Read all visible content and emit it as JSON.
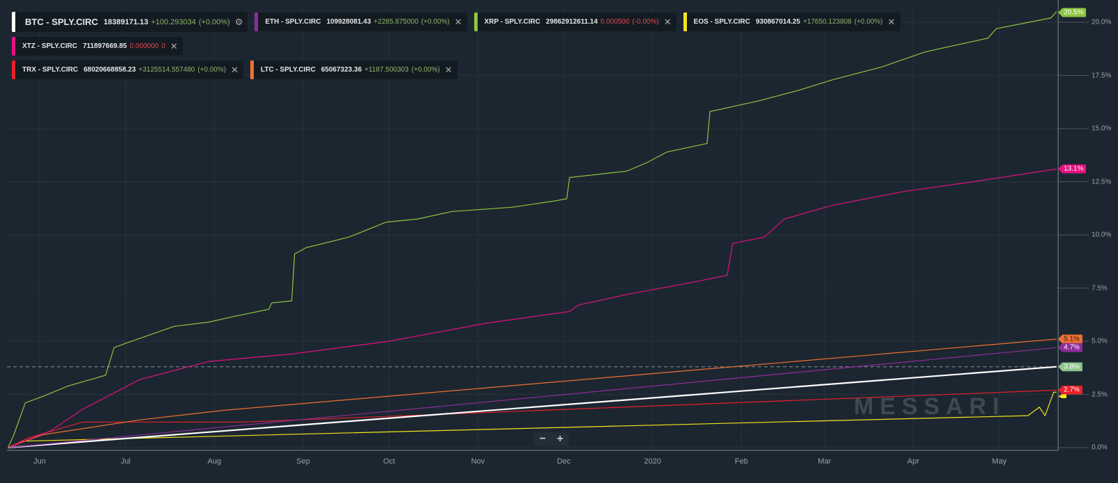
{
  "legend": [
    {
      "name": "BTC - SPLY.CIRC",
      "value": "18389171.13",
      "change": "+100.293034",
      "pct": "(+0.00%)",
      "dir": "pos",
      "color": "#ffffff",
      "action": "gear-icon"
    },
    {
      "name": "ETH - SPLY.CIRC",
      "value": "109928081.43",
      "change": "+2285.875000",
      "pct": "(+0.00%)",
      "dir": "pos",
      "color": "#8e2d9a",
      "action": "close-icon"
    },
    {
      "name": "XRP - SPLY.CIRC",
      "value": "29862912611.14",
      "change": "0.000500",
      "pct": "(-0.00%)",
      "dir": "neg",
      "color": "#8dc63f",
      "action": "close-icon"
    },
    {
      "name": "EOS - SPLY.CIRC",
      "value": "930867014.25",
      "change": "+17650.123808",
      "pct": "(+0.00%)",
      "dir": "pos",
      "color": "#f4e51c",
      "action": "close-icon"
    },
    {
      "name": "XTZ - SPLY.CIRC",
      "value": "711897669.85",
      "change": "0.000000",
      "pct": "0",
      "dir": "neg",
      "color": "#e3117f",
      "action": "close-icon"
    },
    {
      "name": "TRX - SPLY.CIRC",
      "value": "68020668858.23",
      "change": "+3125514.557480",
      "pct": "(+0.00%)",
      "dir": "pos",
      "color": "#e8202a",
      "action": "close-icon"
    },
    {
      "name": "LTC - SPLY.CIRC",
      "value": "65067323.36",
      "change": "+1187.500303",
      "pct": "(+0.00%)",
      "dir": "pos",
      "color": "#f07030",
      "action": "close-icon"
    }
  ],
  "close_glyph": "✕",
  "gear_glyph": "⚙",
  "zoom_controls": {
    "minus": "−",
    "plus": "+"
  },
  "watermark": "MESSARI",
  "chart_data": {
    "type": "line",
    "y_unit": "%",
    "ylim": [
      0,
      20.5
    ],
    "y_ticks": [
      "0.0%",
      "2.5%",
      "5.0%",
      "7.5%",
      "10.0%",
      "12.5%",
      "15.0%",
      "17.5%",
      "20.0%"
    ],
    "x_ticks": [
      "Jun",
      "Jul",
      "Aug",
      "Sep",
      "Oct",
      "Nov",
      "Dec",
      "2020",
      "Feb",
      "Mar",
      "Apr",
      "May"
    ],
    "grid": true,
    "reference_line": 3.8,
    "series": [
      {
        "name": "XRP - SPLY.CIRC",
        "color": "#8dc63f",
        "end_label": "20.5%",
        "points": [
          [
            "2019-05-21",
            0
          ],
          [
            "2019-05-23",
            0.6
          ],
          [
            "2019-05-27",
            2.1
          ],
          [
            "2019-06-02",
            2.4
          ],
          [
            "2019-06-11",
            2.9
          ],
          [
            "2019-06-24",
            3.4
          ],
          [
            "2019-06-27",
            4.7
          ],
          [
            "2019-07-01",
            4.9
          ],
          [
            "2019-07-18",
            5.7
          ],
          [
            "2019-07-30",
            5.9
          ],
          [
            "2019-08-09",
            6.2
          ],
          [
            "2019-08-20",
            6.5
          ],
          [
            "2019-08-21",
            6.8
          ],
          [
            "2019-08-28",
            6.9
          ],
          [
            "2019-08-29",
            9.1
          ],
          [
            "2019-09-02",
            9.4
          ],
          [
            "2019-09-17",
            9.9
          ],
          [
            "2019-09-30",
            10.6
          ],
          [
            "2019-10-11",
            10.75
          ],
          [
            "2019-10-23",
            11.1
          ],
          [
            "2019-11-13",
            11.3
          ],
          [
            "2019-11-28",
            11.6
          ],
          [
            "2019-12-02",
            11.7
          ],
          [
            "2019-12-03",
            12.7
          ],
          [
            "2019-12-23",
            13.0
          ],
          [
            "2019-12-30",
            13.4
          ],
          [
            "2020-01-06",
            13.9
          ],
          [
            "2020-01-20",
            14.3
          ],
          [
            "2020-01-21",
            15.8
          ],
          [
            "2020-02-07",
            16.3
          ],
          [
            "2020-02-21",
            16.8
          ],
          [
            "2020-03-04",
            17.3
          ],
          [
            "2020-03-21",
            17.9
          ],
          [
            "2020-04-05",
            18.6
          ],
          [
            "2020-04-27",
            19.25
          ],
          [
            "2020-04-30",
            19.7
          ],
          [
            "2020-05-19",
            20.2
          ],
          [
            "2020-05-21",
            20.5
          ]
        ]
      },
      {
        "name": "XTZ - SPLY.CIRC",
        "color": "#e3117f",
        "end_label": "13.1%",
        "points": [
          [
            "2019-05-21",
            0
          ],
          [
            "2019-06-05",
            0.8
          ],
          [
            "2019-06-16",
            1.8
          ],
          [
            "2019-07-06",
            3.2
          ],
          [
            "2019-07-30",
            4.05
          ],
          [
            "2019-08-28",
            4.4
          ],
          [
            "2019-10-01",
            5.0
          ],
          [
            "2019-11-04",
            5.85
          ],
          [
            "2019-12-03",
            6.4
          ],
          [
            "2019-12-06",
            6.7
          ],
          [
            "2019-12-23",
            7.2
          ],
          [
            "2020-01-16",
            7.8
          ],
          [
            "2020-01-27",
            8.1
          ],
          [
            "2020-01-29",
            9.6
          ],
          [
            "2020-02-09",
            9.9
          ],
          [
            "2020-02-16",
            10.75
          ],
          [
            "2020-03-04",
            11.4
          ],
          [
            "2020-03-29",
            12.05
          ],
          [
            "2020-04-22",
            12.5
          ],
          [
            "2020-05-21",
            13.1
          ]
        ]
      },
      {
        "name": "LTC - SPLY.CIRC",
        "color": "#f07030",
        "end_label": "5.1%",
        "points": [
          [
            "2019-05-21",
            0
          ],
          [
            "2019-06-02",
            0.6
          ],
          [
            "2019-07-06",
            1.3
          ],
          [
            "2019-08-04",
            1.75
          ],
          [
            "2020-05-21",
            5.1
          ]
        ]
      },
      {
        "name": "ETH - SPLY.CIRC",
        "color": "#8e2d9a",
        "end_label": "4.7%",
        "points": [
          [
            "2019-05-21",
            0
          ],
          [
            "2020-05-21",
            4.7
          ]
        ]
      },
      {
        "name": "BTC - SPLY.CIRC",
        "color": "#ffffff",
        "end_label": "3.8%",
        "points": [
          [
            "2019-05-21",
            0
          ],
          [
            "2020-05-21",
            3.8
          ]
        ]
      },
      {
        "name": "TRX - SPLY.CIRC",
        "color": "#e8202a",
        "end_label": "2.7%",
        "points": [
          [
            "2019-05-21",
            0
          ],
          [
            "2019-05-28",
            0.45
          ],
          [
            "2019-06-16",
            1.2
          ],
          [
            "2019-08-11",
            1.2
          ],
          [
            "2020-05-21",
            2.7
          ]
        ]
      },
      {
        "name": "EOS - SPLY.CIRC",
        "color": "#f4e51c",
        "end_label": "",
        "points": [
          [
            "2019-05-21",
            0
          ],
          [
            "2019-05-26",
            0.3
          ],
          [
            "2020-05-11",
            1.5
          ],
          [
            "2020-05-15",
            1.9
          ],
          [
            "2020-05-17",
            1.5
          ],
          [
            "2020-05-20",
            2.6
          ],
          [
            "2020-05-21",
            2.6
          ]
        ]
      }
    ]
  }
}
